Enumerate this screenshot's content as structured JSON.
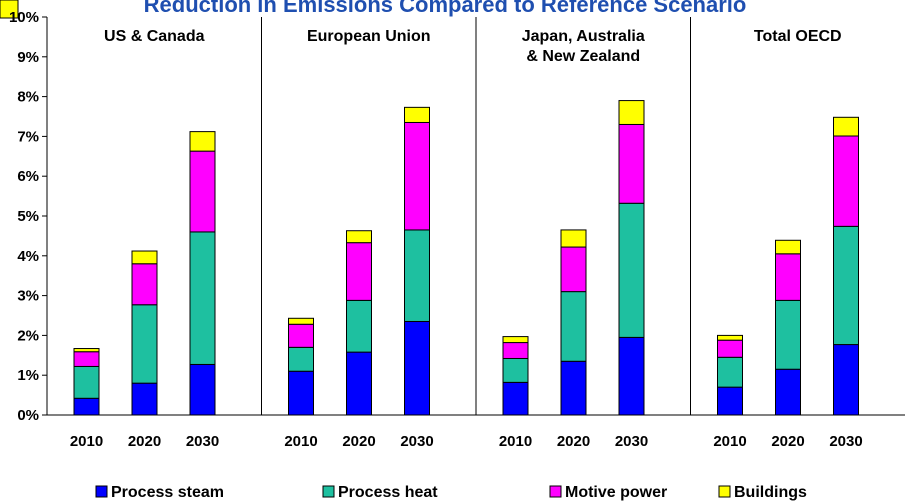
{
  "chart_data": {
    "type": "bar",
    "stacked": true,
    "title": "Reduction in Emissions Compared to Reference Scenario",
    "ylim": [
      0,
      10
    ],
    "yticks": [
      "0%",
      "1%",
      "2%",
      "3%",
      "4%",
      "5%",
      "6%",
      "7%",
      "8%",
      "9%",
      "10%"
    ],
    "legend_position": "bottom",
    "grid": false,
    "panels": [
      {
        "name": [
          "US & Canada"
        ],
        "categories": [
          "2010",
          "2020",
          "2030"
        ]
      },
      {
        "name": [
          "European Union"
        ],
        "categories": [
          "2010",
          "2020",
          "2030"
        ]
      },
      {
        "name": [
          "Japan, Australia",
          "& New Zealand"
        ],
        "categories": [
          "2010",
          "2020",
          "2030"
        ]
      },
      {
        "name": [
          "Total OECD"
        ],
        "categories": [
          "2010",
          "2020",
          "2030"
        ]
      }
    ],
    "series": [
      {
        "name": "Process steam",
        "color": "#0000ff",
        "values": [
          [
            0.42,
            0.8,
            1.27
          ],
          [
            1.1,
            1.58,
            2.35
          ],
          [
            0.82,
            1.35,
            1.95
          ],
          [
            0.7,
            1.15,
            1.77
          ]
        ]
      },
      {
        "name": "Process heat",
        "color": "#1ec0a0",
        "values": [
          [
            0.8,
            1.97,
            3.33
          ],
          [
            0.6,
            1.3,
            2.3
          ],
          [
            0.6,
            1.75,
            3.37
          ],
          [
            0.75,
            1.73,
            2.97
          ]
        ]
      },
      {
        "name": "Motive power",
        "color": "#ff00ff",
        "values": [
          [
            0.37,
            1.03,
            2.03
          ],
          [
            0.58,
            1.45,
            2.7
          ],
          [
            0.4,
            1.12,
            1.98
          ],
          [
            0.43,
            1.17,
            2.27
          ]
        ]
      },
      {
        "name": "Buildings",
        "color": "#ffff00",
        "values": [
          [
            0.08,
            0.32,
            0.49
          ],
          [
            0.15,
            0.3,
            0.38
          ],
          [
            0.15,
            0.43,
            0.6
          ],
          [
            0.12,
            0.34,
            0.47
          ]
        ]
      }
    ]
  }
}
